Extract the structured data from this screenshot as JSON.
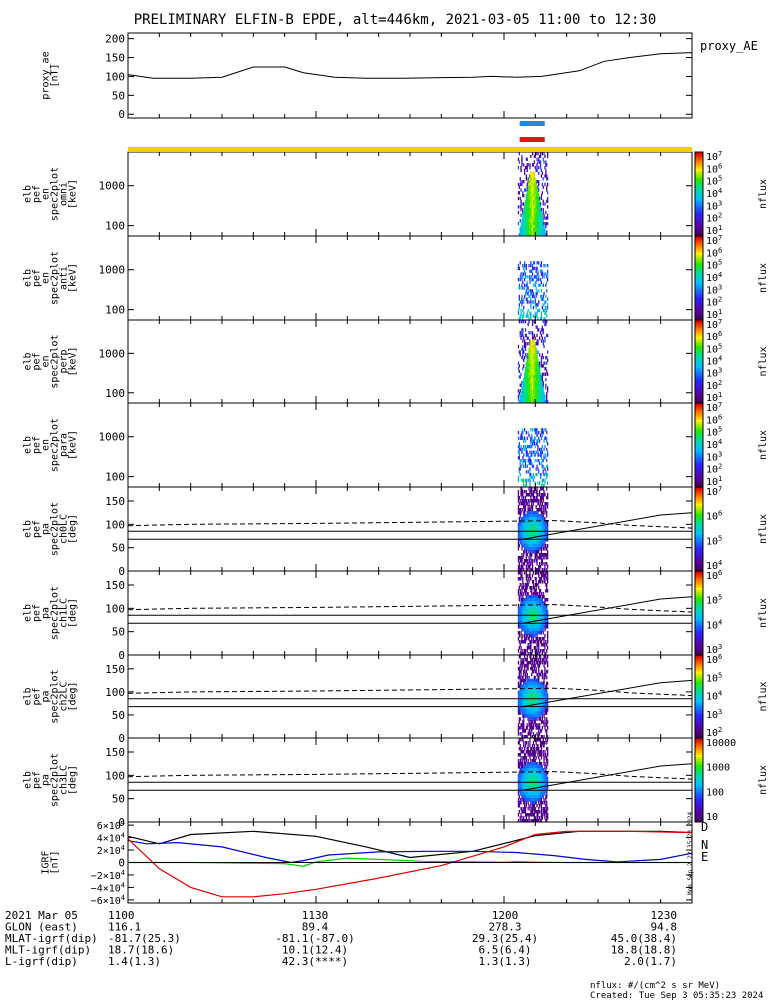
{
  "title": "PRELIMINARY ELFIN-B EPDE, alt=446km, 2021-03-05 11:00 to 12:30",
  "colors": {
    "orbit_bar_top": "#1e88e5",
    "orbit_bar_bottom": "#d91a1a",
    "sunlit_bar": "#f0d000"
  },
  "chart_data": [
    {
      "type": "line",
      "name": "proxy_ae",
      "label": "proxy_AE",
      "ylabel": [
        "proxy_ae",
        "[nT]"
      ],
      "ylim": [
        -10,
        215
      ],
      "yticks": [
        0,
        50,
        100,
        150,
        200
      ],
      "x": [
        0,
        4,
        10,
        15,
        20,
        25,
        28,
        33,
        38,
        44,
        50,
        55,
        58,
        62,
        66,
        72,
        76,
        80,
        85,
        90
      ],
      "values": [
        105,
        95,
        95,
        98,
        125,
        125,
        110,
        98,
        95,
        95,
        97,
        98,
        100,
        98,
        100,
        115,
        140,
        150,
        160,
        163
      ]
    },
    {
      "type": "heatmap",
      "name": "omni",
      "ylabel": [
        "elb",
        "pef",
        "en",
        "spec2plot",
        "omni",
        "[keV]"
      ],
      "yscale": "log",
      "ylim": [
        55,
        7000
      ],
      "ytick_labels": [
        "100",
        "1000"
      ],
      "yticks": [
        100,
        1000
      ],
      "colorbar": {
        "label": "nflux",
        "ticks": [
          "10^7",
          "10^6",
          "10^5",
          "10^4",
          "10^3",
          "10^2",
          "10^1"
        ]
      },
      "intensity": "strong"
    },
    {
      "type": "heatmap",
      "name": "anti",
      "ylabel": [
        "elb",
        "pef",
        "en",
        "spec2plot",
        "anti",
        "[keV]"
      ],
      "yscale": "log",
      "ylim": [
        55,
        7000
      ],
      "ytick_labels": [
        "100",
        "1000"
      ],
      "yticks": [
        100,
        1000
      ],
      "colorbar": {
        "label": "nflux",
        "ticks": [
          "10^7",
          "10^6",
          "10^5",
          "10^4",
          "10^3",
          "10^2",
          "10^1"
        ]
      },
      "intensity": "weak"
    },
    {
      "type": "heatmap",
      "name": "perp",
      "ylabel": [
        "elb",
        "pef",
        "en",
        "spec2plot",
        "perp",
        "[keV]"
      ],
      "yscale": "log",
      "ylim": [
        55,
        7000
      ],
      "ytick_labels": [
        "100",
        "1000"
      ],
      "yticks": [
        100,
        1000
      ],
      "colorbar": {
        "label": "nflux",
        "ticks": [
          "10^7",
          "10^6",
          "10^5",
          "10^4",
          "10^3",
          "10^2",
          "10^1"
        ]
      },
      "intensity": "strong"
    },
    {
      "type": "heatmap",
      "name": "para",
      "ylabel": [
        "elb",
        "pef",
        "en",
        "spec2plot",
        "para",
        "[keV]"
      ],
      "yscale": "log",
      "ylim": [
        55,
        7000
      ],
      "ytick_labels": [
        "100",
        "1000"
      ],
      "yticks": [
        100,
        1000
      ],
      "colorbar": {
        "label": "nflux",
        "ticks": [
          "10^7",
          "10^6",
          "10^5",
          "10^4",
          "10^3",
          "10^2",
          "10^1"
        ]
      },
      "intensity": "weak"
    },
    {
      "type": "heatmap",
      "name": "ch0LC",
      "ylabel": [
        "elb",
        "pef",
        "pa",
        "spec2plot",
        "ch0LC",
        "[deg]"
      ],
      "ylim": [
        0,
        180
      ],
      "yticks": [
        0,
        50,
        100,
        150
      ],
      "colorbar": {
        "label": "nflux",
        "ticks": [
          "10^7",
          "10^6",
          "10^5",
          "10^4"
        ]
      },
      "dashed_line": {
        "x": [
          0,
          10,
          30,
          50,
          62,
          68,
          74,
          80,
          85,
          90
        ],
        "y": [
          97,
          100,
          102,
          105,
          107,
          108,
          104,
          98,
          95,
          92
        ]
      },
      "solid_lines": [
        {
          "x": [
            0,
            90
          ],
          "y": [
            85,
            85
          ]
        },
        {
          "x": [
            0,
            90
          ],
          "y": [
            68,
            68
          ]
        },
        {
          "x": [
            63,
            85,
            90
          ],
          "y": [
            68,
            120,
            125
          ]
        }
      ]
    },
    {
      "type": "heatmap",
      "name": "ch1LC",
      "ylabel": [
        "elb",
        "pef",
        "pa",
        "spec2plot",
        "ch1LC",
        "[deg]"
      ],
      "ylim": [
        0,
        180
      ],
      "yticks": [
        0,
        50,
        100,
        150
      ],
      "colorbar": {
        "label": "nflux",
        "ticks": [
          "10^6",
          "10^5",
          "10^4",
          "10^3"
        ]
      },
      "dashed_line": {
        "x": [
          0,
          10,
          30,
          50,
          62,
          68,
          74,
          80,
          85,
          90
        ],
        "y": [
          97,
          100,
          102,
          105,
          107,
          108,
          104,
          98,
          95,
          92
        ]
      },
      "solid_lines": [
        {
          "x": [
            0,
            90
          ],
          "y": [
            85,
            85
          ]
        },
        {
          "x": [
            0,
            90
          ],
          "y": [
            68,
            68
          ]
        },
        {
          "x": [
            63,
            85,
            90
          ],
          "y": [
            68,
            120,
            125
          ]
        }
      ]
    },
    {
      "type": "heatmap",
      "name": "ch2LC",
      "ylabel": [
        "elb",
        "pef",
        "pa",
        "spec2plot",
        "ch2LC",
        "[deg]"
      ],
      "ylim": [
        0,
        180
      ],
      "yticks": [
        0,
        50,
        100,
        150
      ],
      "colorbar": {
        "label": "nflux",
        "ticks": [
          "10^6",
          "10^5",
          "10^4",
          "10^3",
          "10^2"
        ]
      },
      "dashed_line": {
        "x": [
          0,
          10,
          30,
          50,
          62,
          68,
          74,
          80,
          85,
          90
        ],
        "y": [
          97,
          100,
          102,
          105,
          107,
          108,
          104,
          98,
          95,
          92
        ]
      },
      "solid_lines": [
        {
          "x": [
            0,
            90
          ],
          "y": [
            85,
            85
          ]
        },
        {
          "x": [
            0,
            90
          ],
          "y": [
            68,
            68
          ]
        },
        {
          "x": [
            63,
            85,
            90
          ],
          "y": [
            68,
            120,
            125
          ]
        }
      ]
    },
    {
      "type": "heatmap",
      "name": "ch3LC",
      "ylabel": [
        "elb",
        "pef",
        "pa",
        "spec2plot",
        "ch3LC",
        "[deg]"
      ],
      "ylim": [
        0,
        180
      ],
      "yticks": [
        0,
        50,
        100,
        150
      ],
      "colorbar": {
        "label": "nflux",
        "ticks": [
          "10000",
          "1000",
          "100",
          "10"
        ]
      },
      "dashed_line": {
        "x": [
          0,
          10,
          30,
          50,
          62,
          68,
          74,
          80,
          85,
          90
        ],
        "y": [
          97,
          100,
          102,
          105,
          107,
          108,
          104,
          98,
          95,
          92
        ]
      },
      "solid_lines": [
        {
          "x": [
            0,
            90
          ],
          "y": [
            85,
            85
          ]
        },
        {
          "x": [
            0,
            90
          ],
          "y": [
            68,
            68
          ]
        },
        {
          "x": [
            63,
            85,
            90
          ],
          "y": [
            68,
            120,
            125
          ]
        }
      ]
    },
    {
      "type": "line",
      "name": "igrf",
      "ylabel": [
        "IGRF",
        "[nT]"
      ],
      "ylim": [
        -65000,
        65000
      ],
      "ytick_labels": [
        "6×10^4",
        "4×10^4",
        "2×10^4",
        "0",
        "−2×10^4",
        "−4×10^4",
        "−6×10^4"
      ],
      "yticks": [
        60000,
        40000,
        20000,
        0,
        -20000,
        -40000,
        -60000
      ],
      "series": [
        {
          "name": "D",
          "color": "#000000",
          "x": [
            0,
            5,
            10,
            20,
            30,
            38,
            45,
            55,
            65,
            72,
            80,
            85,
            90
          ],
          "values": [
            42000,
            30000,
            45000,
            50000,
            42000,
            25000,
            8000,
            18000,
            43000,
            50000,
            50000,
            50000,
            48000
          ]
        },
        {
          "name": "N",
          "color": "#0000cc",
          "x": [
            0,
            3,
            8,
            15,
            22,
            26,
            28,
            32,
            40,
            48,
            55,
            62,
            68,
            73,
            78,
            85,
            90
          ],
          "values": [
            35000,
            30000,
            32000,
            25000,
            8000,
            0,
            3000,
            12000,
            17000,
            18000,
            18000,
            16000,
            11000,
            5000,
            1000,
            5000,
            15000
          ]
        },
        {
          "name": "E",
          "color": "#00cc00",
          "x": [
            0,
            5,
            10,
            18,
            25,
            28,
            30,
            35,
            40,
            47,
            55,
            60,
            62,
            66,
            70,
            75,
            80,
            85,
            90
          ],
          "values": [
            0,
            0,
            0,
            -1000,
            -2000,
            -6000,
            1000,
            7000,
            5000,
            2000,
            1000,
            500,
            1500,
            500,
            0,
            0,
            0,
            0,
            0
          ]
        },
        {
          "name": "",
          "color": "#dd0000",
          "x": [
            0,
            5,
            10,
            15,
            20,
            25,
            30,
            40,
            50,
            60,
            65,
            70,
            72,
            80,
            90
          ],
          "values": [
            38000,
            -10000,
            -40000,
            -55000,
            -55000,
            -50000,
            -43000,
            -25000,
            -5000,
            25000,
            45000,
            50000,
            50000,
            50000,
            48000
          ]
        }
      ]
    }
  ],
  "time_axis": {
    "ticks": [
      "1100",
      "1130",
      "1200",
      "1230"
    ],
    "rows": [
      {
        "label": "2021 Mar 05",
        "values": [
          "1100",
          "1130",
          "1200",
          "1230"
        ]
      },
      {
        "label": "GLON (east)",
        "values": [
          "116.1",
          "89.4",
          "278.3",
          "94.8"
        ]
      },
      {
        "label": "MLAT-igrf(dip)",
        "values": [
          "-81.7(25.3)",
          "-81.1(-87.0)",
          "29.3(25.4)",
          "45.0(38.4)"
        ]
      },
      {
        "label": "MLT-igrf(dip)",
        "values": [
          "18.7(18.6)",
          "10.1(12.4)",
          "6.5(6.4)",
          "18.8(18.8)"
        ]
      },
      {
        "label": "L-igrf(dip)",
        "values": [
          "1.4(1.3)",
          "42.3(****)",
          "1.3(1.3)",
          "2.0(1.7)"
        ]
      }
    ]
  },
  "footer": {
    "units": "nflux: #/(cm^2 s sr MeV)",
    "created": "Created: Tue Sep  3 05:35:23 2024",
    "side_stamp": "Mon Sep  2 22:35:23 2024"
  }
}
